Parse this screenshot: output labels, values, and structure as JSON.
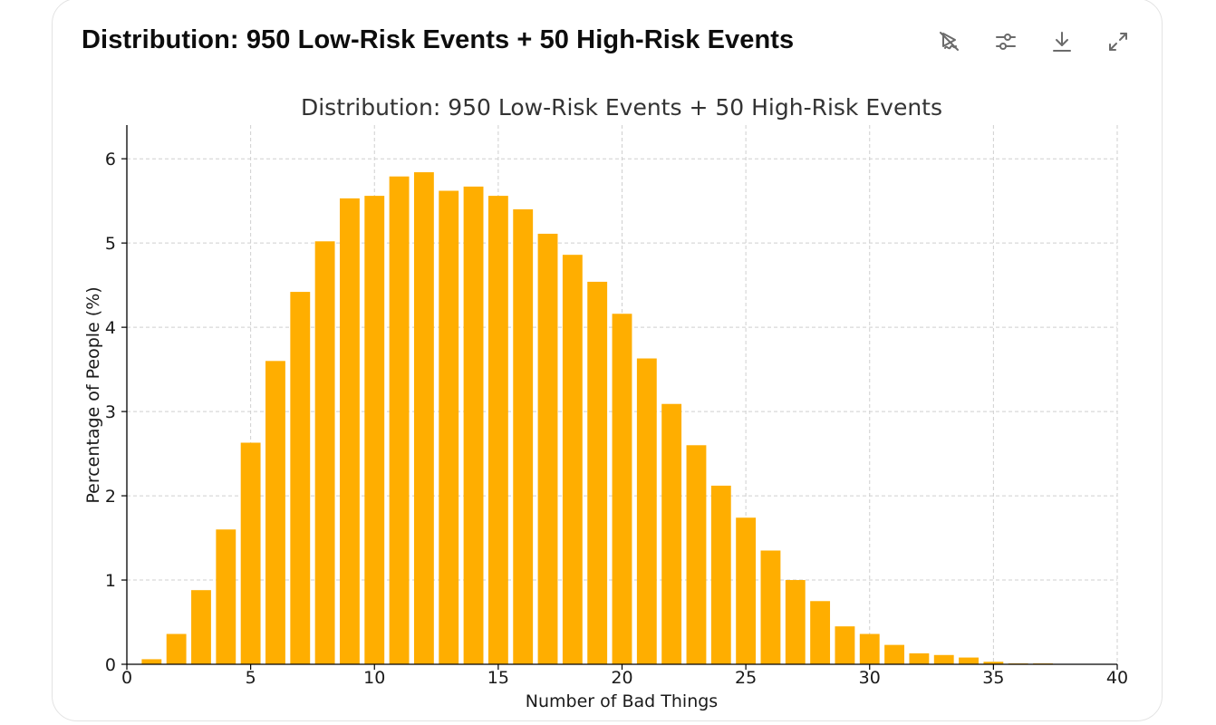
{
  "header": {
    "title": "Distribution: 950 Low-Risk Events + 50 High-Risk Events"
  },
  "toolbar": {
    "buttons": [
      {
        "icon": "interactive-off-icon"
      },
      {
        "icon": "settings-sliders-icon"
      },
      {
        "icon": "download-icon"
      },
      {
        "icon": "expand-icon"
      }
    ]
  },
  "colors": {
    "bar": "#FFAE00",
    "grid": "#cfcfcf",
    "axis": "#000000"
  },
  "chart_data": {
    "type": "bar",
    "title": "Distribution: 950 Low-Risk Events + 50 High-Risk Events",
    "xlabel": "Number of Bad Things",
    "ylabel": "Percentage of People (%)",
    "xlim": [
      0,
      40
    ],
    "ylim": [
      0,
      6.4
    ],
    "xticks": [
      0,
      5,
      10,
      15,
      20,
      25,
      30,
      35,
      40
    ],
    "yticks": [
      0,
      1,
      2,
      3,
      4,
      5,
      6
    ],
    "grid": true,
    "x": [
      1,
      2,
      3,
      4,
      5,
      6,
      7,
      8,
      9,
      10,
      11,
      12,
      13,
      14,
      15,
      16,
      17,
      18,
      19,
      20,
      21,
      22,
      23,
      24,
      25,
      26,
      27,
      28,
      29,
      30,
      31,
      32,
      33,
      34,
      35,
      36,
      37
    ],
    "values": [
      0.06,
      0.36,
      0.88,
      1.6,
      2.63,
      3.6,
      4.42,
      5.02,
      5.53,
      5.56,
      5.79,
      5.84,
      5.62,
      5.67,
      5.56,
      5.4,
      5.11,
      4.86,
      4.54,
      4.16,
      3.63,
      3.09,
      2.6,
      2.12,
      1.74,
      1.35,
      1.0,
      0.75,
      0.45,
      0.36,
      0.23,
      0.13,
      0.11,
      0.08,
      0.03,
      0.01,
      0.01
    ]
  }
}
